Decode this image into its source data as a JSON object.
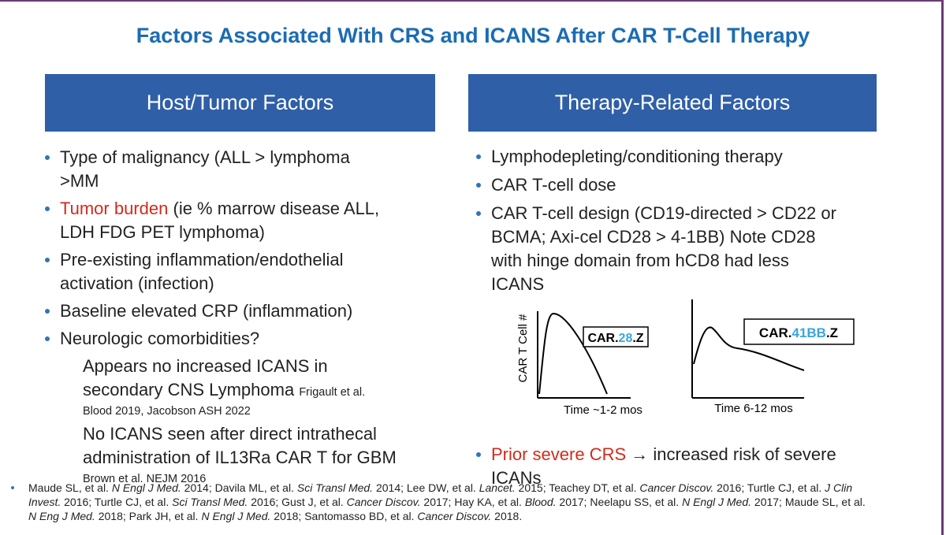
{
  "title": "Factors Associated With CRS and ICANS After CAR T-Cell Therapy",
  "left_panel": {
    "header": "Host/Tumor Factors",
    "items": [
      {
        "level": 1,
        "lines": [
          [
            {
              "text": "Type of malignancy (ALL > lymphoma"
            }
          ],
          [
            {
              "text": ">MM"
            }
          ]
        ]
      },
      {
        "level": 1,
        "lines": [
          [
            {
              "text": "Tumor burden",
              "color": "#d42a1c"
            },
            {
              "text": " (ie % marrow disease ALL,"
            }
          ],
          [
            {
              "text": "LDH FDG PET lymphoma)"
            }
          ]
        ]
      },
      {
        "level": 1,
        "lines": [
          [
            {
              "text": "Pre-existing inflammation/endothelial"
            }
          ],
          [
            {
              "text": "activation (infection)"
            }
          ]
        ]
      },
      {
        "level": 1,
        "lines": [
          [
            {
              "text": "Baseline elevated CRP (inflammation)"
            }
          ]
        ]
      },
      {
        "level": 1,
        "lines": [
          [
            {
              "text": "Neurologic comorbidities?"
            }
          ]
        ]
      },
      {
        "level": 2,
        "lines": [
          [
            {
              "text": "Appears no increased ICANS in"
            }
          ],
          [
            {
              "text": "secondary CNS Lymphoma "
            },
            {
              "text": "Frigault et al.",
              "size": "small"
            }
          ],
          [
            {
              "text": "Blood 2019, Jacobson ASH 2022",
              "size": "small"
            }
          ]
        ]
      },
      {
        "level": 2,
        "lines": [
          [
            {
              "text": "No ICANS seen after direct intrathecal"
            }
          ],
          [
            {
              "text": "administration of IL13Ra CAR T for GBM"
            }
          ],
          [
            {
              "text": "Brown et al. NEJM 2016",
              "size": "small"
            }
          ]
        ]
      }
    ]
  },
  "right_panel": {
    "header": "Therapy-Related Factors",
    "items": [
      {
        "level": 1,
        "lines": [
          [
            {
              "text": "Lymphodepleting/conditioning therapy"
            }
          ]
        ]
      },
      {
        "level": 1,
        "lines": [
          [
            {
              "text": "CAR T-cell dose"
            }
          ]
        ]
      },
      {
        "level": 1,
        "lines": [
          [
            {
              "text": "CAR T-cell design (CD19-directed > CD22 or"
            }
          ],
          [
            {
              "text": "BCMA; Axi-cel CD28 > 4-1BB) Note CD28"
            }
          ],
          [
            {
              "text": "with hinge domain from hCD8 had less"
            }
          ],
          [
            {
              "text": "ICANS"
            }
          ]
        ]
      }
    ],
    "figure": {
      "y_label": "CAR T Cell #",
      "left_curve": {
        "label": [
          {
            "text": "CAR."
          },
          {
            "text": "28",
            "color": "#3aa6dd"
          },
          {
            "text": ".Z"
          }
        ],
        "x_label": "Time ~1-2 mos"
      },
      "right_curve": {
        "label": [
          {
            "text": "CAR."
          },
          {
            "text": "41BB",
            "color": "#3aa6dd"
          },
          {
            "text": ".Z"
          }
        ],
        "x_label": "Time 6-12 mos"
      }
    },
    "final_item": {
      "level": 1,
      "lines": [
        [
          {
            "text": "Prior severe CRS",
            "color": "#d42a1c"
          },
          {
            "text": " → increased risk of severe"
          }
        ],
        [
          {
            "text": "ICANs"
          }
        ]
      ]
    }
  },
  "references": [
    [
      {
        "text": "Maude SL, et al. "
      },
      {
        "text": "N Engl J Med.",
        "italic": true
      },
      {
        "text": " 2014; Davila ML, et al. "
      },
      {
        "text": "Sci Transl Med.",
        "italic": true
      },
      {
        "text": " 2014; Lee DW, et al. "
      },
      {
        "text": "Lancet.",
        "italic": true
      },
      {
        "text": " 2015; Teachey DT, et al. "
      },
      {
        "text": "Cancer Discov.",
        "italic": true
      },
      {
        "text": " 2016; Turtle CJ, et al. "
      },
      {
        "text": "J Clin",
        "italic": true
      }
    ],
    [
      {
        "text": "Invest.",
        "italic": true
      },
      {
        "text": " 2016; Turtle CJ, et al. "
      },
      {
        "text": "Sci Transl Med.",
        "italic": true
      },
      {
        "text": " 2016; Gust J, et al. "
      },
      {
        "text": "Cancer Discov.",
        "italic": true
      },
      {
        "text": " 2017; Hay KA, et al. "
      },
      {
        "text": "Blood.",
        "italic": true
      },
      {
        "text": " 2017; Neelapu SS, et al. "
      },
      {
        "text": "N Engl J Med.",
        "italic": true
      },
      {
        "text": " 2017; Maude SL, et al."
      }
    ],
    [
      {
        "text": "N Eng J Med.",
        "italic": true
      },
      {
        "text": " 2018; Park JH, et al. "
      },
      {
        "text": "N Engl J Med.",
        "italic": true
      },
      {
        "text": " 2018; Santomasso BD, et al. "
      },
      {
        "text": "Cancer Discov.",
        "italic": true
      },
      {
        "text": " 2018."
      }
    ]
  ]
}
